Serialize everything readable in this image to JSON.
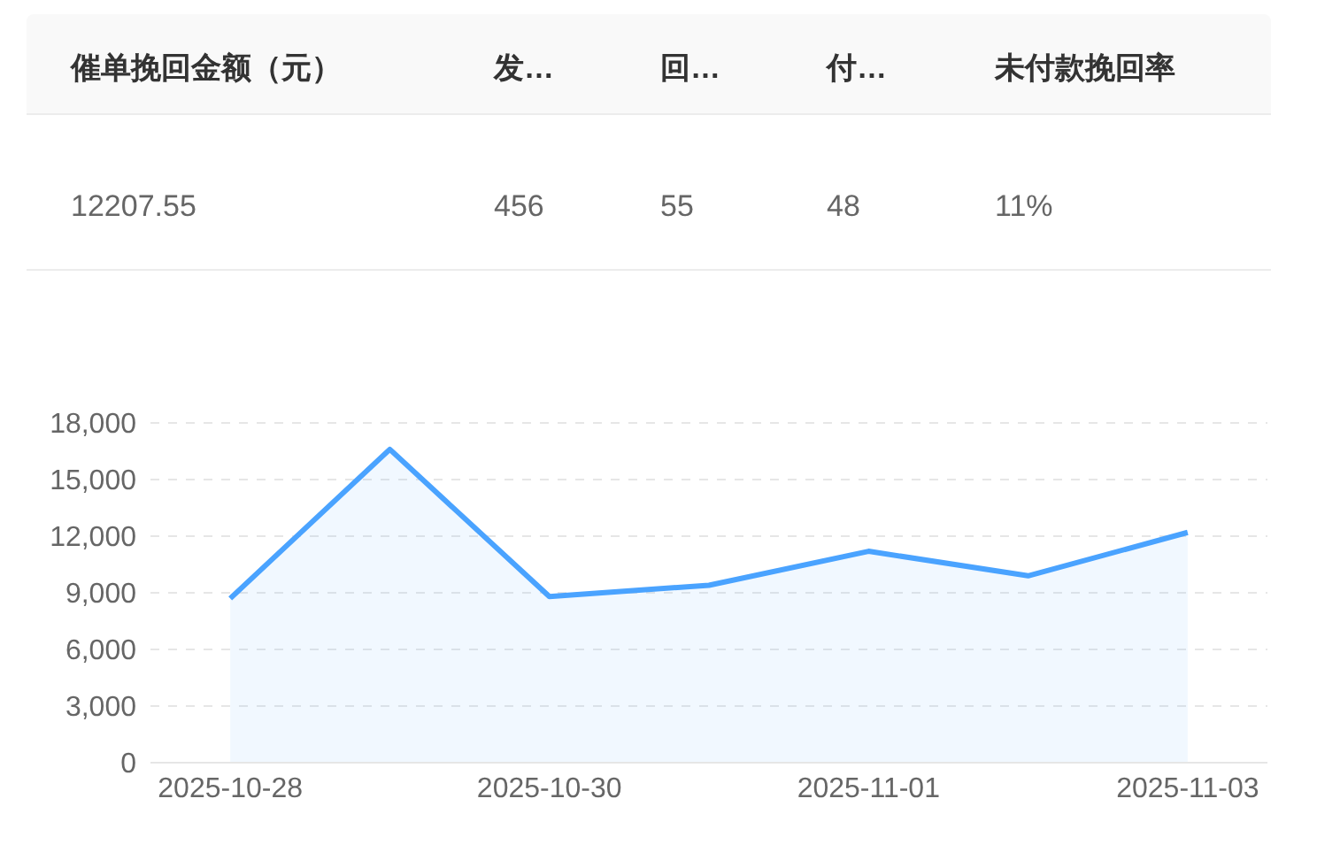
{
  "chart_data": [
    {
      "type": "other",
      "categories": [
        "催单挽回金额（元）",
        "发…",
        "回…",
        "付…",
        "未付款挽回率"
      ],
      "value_labels": [
        "12207.55",
        "456",
        "55",
        "48",
        "11%"
      ]
    },
    {
      "type": "area",
      "x": [
        "2025-10-28",
        "2025-10-29",
        "2025-10-30",
        "2025-10-31",
        "2025-11-01",
        "2025-11-02",
        "2025-11-03"
      ],
      "series": [
        {
          "color": "#4aa3ff",
          "values": [
            8700,
            16600,
            8800,
            9400,
            11200,
            9900,
            12200
          ]
        }
      ],
      "xlim": [
        "2025-10-27T12:00",
        "2025-11-03T12:00"
      ],
      "xticks": [
        "2025-10-28",
        "2025-10-30",
        "2025-11-01",
        "2025-11-03"
      ],
      "ylim": [
        0,
        18000
      ],
      "yticks": [
        0,
        {
          "value": 3000,
          "label": "3,000"
        },
        {
          "value": 6000,
          "label": "6,000"
        },
        {
          "value": 9000,
          "label": "9,000"
        },
        {
          "value": 12000,
          "label": "12,000"
        },
        {
          "value": 15000,
          "label": "15,000"
        },
        {
          "value": 18000,
          "label": "18,000"
        }
      ],
      "grid": "y",
      "legend": false,
      "marker": "none",
      "line_style": "solid"
    }
  ]
}
